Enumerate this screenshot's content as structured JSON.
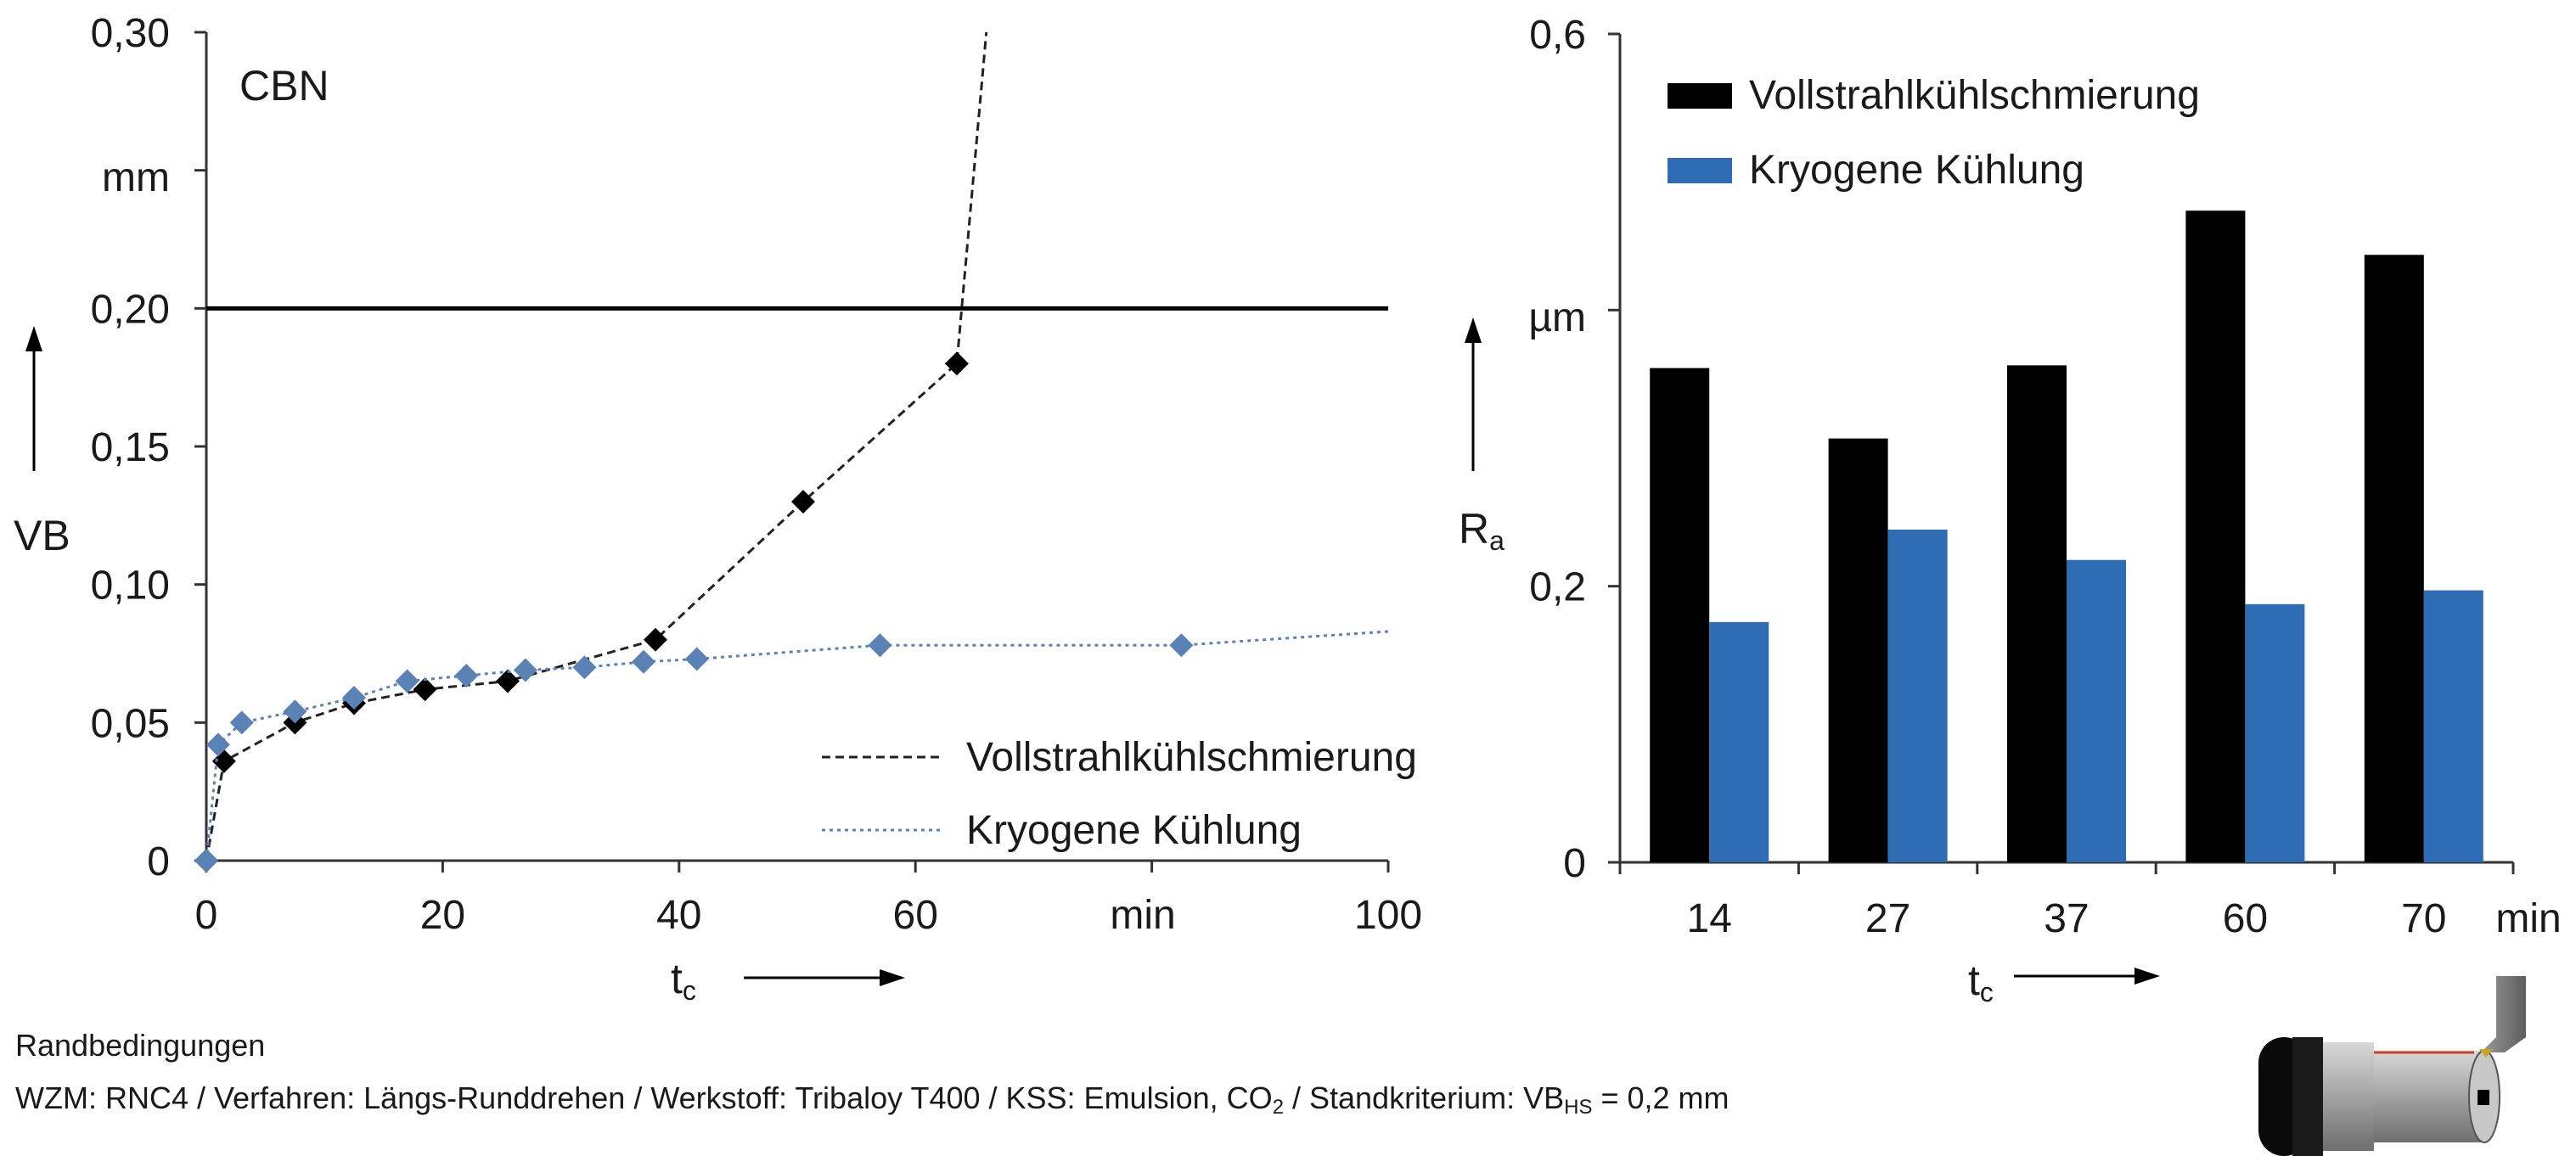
{
  "chart_data": [
    {
      "type": "line",
      "annotation": "CBN",
      "ylabel": "VB",
      "y_unit": "mm",
      "xlabel": "t",
      "xlabel_sub": "c",
      "x_unit": "min",
      "xlim": [
        0,
        100
      ],
      "ylim": [
        0,
        0.3
      ],
      "xticks": [
        "0",
        "20",
        "40",
        "60",
        "100"
      ],
      "yticks": [
        "0",
        "0,05",
        "0,10",
        "0,15",
        "0,20",
        "0,30"
      ],
      "threshold": 0.2,
      "legend_position": "bottom-right",
      "grid": false,
      "series": [
        {
          "name": "Vollstrahlkühlschmierung",
          "color": "#000000",
          "line_style": "dashed",
          "points": [
            [
              0,
              0
            ],
            [
              1.5,
              0.036
            ],
            [
              7.5,
              0.05
            ],
            [
              12.5,
              0.057
            ],
            [
              18.5,
              0.062
            ],
            [
              25.5,
              0.065
            ],
            [
              38,
              0.08
            ],
            [
              50.5,
              0.13
            ],
            [
              63.5,
              0.18
            ]
          ],
          "extension": [
            66,
            0.3
          ]
        },
        {
          "name": "Kryogene Kühlung",
          "color": "#5b82b4",
          "line_style": "dotted",
          "points": [
            [
              0,
              0
            ],
            [
              1,
              0.042
            ],
            [
              3,
              0.05
            ],
            [
              7.5,
              0.054
            ],
            [
              12.5,
              0.059
            ],
            [
              17,
              0.065
            ],
            [
              22,
              0.067
            ],
            [
              27,
              0.069
            ],
            [
              32,
              0.07
            ],
            [
              37,
              0.072
            ],
            [
              41.5,
              0.073
            ],
            [
              57,
              0.078
            ],
            [
              82.5,
              0.078
            ]
          ],
          "extension": [
            100,
            0.083
          ]
        }
      ]
    },
    {
      "type": "bar",
      "ylabel": "R",
      "ylabel_sub": "a",
      "y_unit": "µm",
      "xlabel": "t",
      "xlabel_sub": "c",
      "x_unit": "min",
      "ylim": [
        0,
        0.6
      ],
      "yticks": [
        "0",
        "0,2",
        "0,6"
      ],
      "categories": [
        "14",
        "27",
        "37",
        "60",
        "70"
      ],
      "legend_position": "top-left",
      "grid": false,
      "series": [
        {
          "name": "Vollstrahlkühlschmierung",
          "color": "#000000",
          "values": [
            0.358,
            0.307,
            0.36,
            0.472,
            0.44
          ]
        },
        {
          "name": "Kryogene Kühlung",
          "color": "#2e6db4",
          "values": [
            0.174,
            0.241,
            0.219,
            0.187,
            0.197
          ]
        }
      ]
    }
  ],
  "footer": {
    "title": "Randbedingungen",
    "line_pre": "WZM: RNC4 / Verfahren: Längs-Runddrehen / Werkstoff: Tribaloy T400 / KSS: Emulsion, CO",
    "line_co2_sub": "2",
    "line_mid": " / Standkriterium: VB",
    "line_vb_sub": "HS",
    "line_post": " = 0,2 mm"
  }
}
